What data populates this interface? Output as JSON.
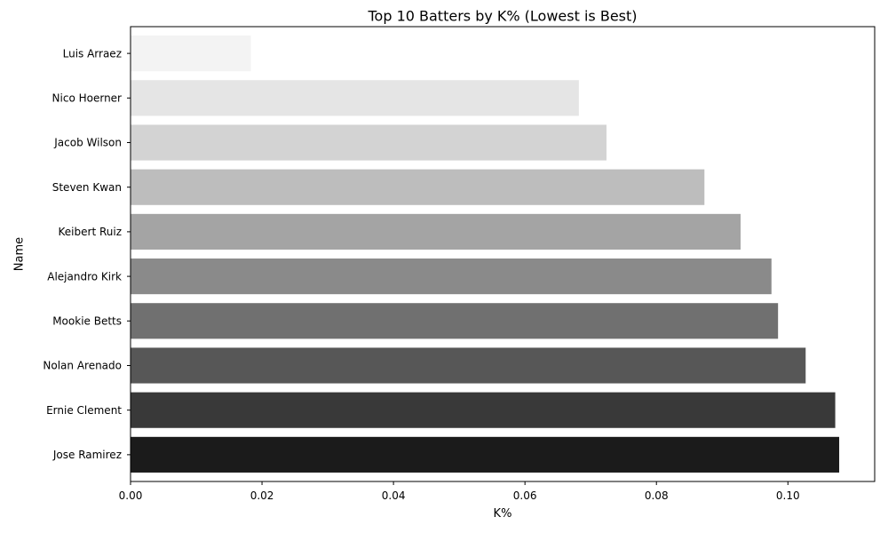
{
  "chart_data": {
    "type": "bar",
    "orientation": "horizontal",
    "title": "Top 10 Batters by K% (Lowest is Best)",
    "xlabel": "K%",
    "ylabel": "Name",
    "xlim": [
      0,
      0.1132
    ],
    "xticks": [
      0.0,
      0.02,
      0.04,
      0.06,
      0.08,
      0.1
    ],
    "xtick_labels": [
      "0.00",
      "0.02",
      "0.04",
      "0.06",
      "0.08",
      "0.10"
    ],
    "grid": false,
    "categories": [
      "Luis Arraez",
      "Nico Hoerner",
      "Jacob Wilson",
      "Steven Kwan",
      "Keibert Ruiz",
      "Alejandro Kirk",
      "Mookie Betts",
      "Nolan Arenado",
      "Ernie Clement",
      "Jose Ramirez"
    ],
    "values": [
      0.0183,
      0.0682,
      0.0724,
      0.0873,
      0.0928,
      0.0975,
      0.0985,
      0.1027,
      0.1072,
      0.1078
    ],
    "colors": [
      "#f3f3f3",
      "#e5e5e5",
      "#d3d3d3",
      "#bdbdbd",
      "#a4a4a4",
      "#8a8a8a",
      "#707070",
      "#575757",
      "#393939",
      "#1b1b1b"
    ]
  }
}
